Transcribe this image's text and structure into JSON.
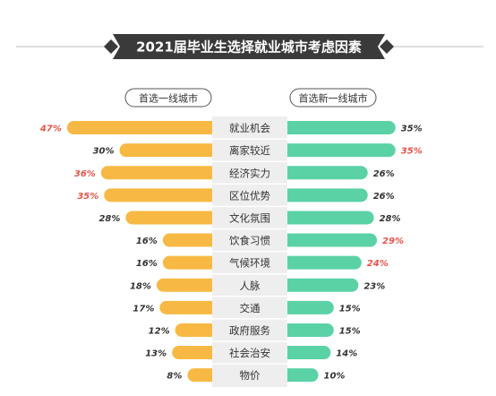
{
  "chart_data": {
    "type": "bar",
    "title": "2021届毕业生选择就业城市考虑因素",
    "left_group": "首选一线城市",
    "right_group": "首选新一线城市",
    "xlim": [
      0,
      50
    ],
    "highlight_color": "#e4554a",
    "normal_value_color": "#333333",
    "left_color": "#f8b944",
    "right_color": "#5ad2a6",
    "categories": [
      "就业机会",
      "离家较近",
      "经济实力",
      "区位优势",
      "文化氛围",
      "饮食习惯",
      "气候环境",
      "人脉",
      "交通",
      "政府服务",
      "社会治安",
      "物价"
    ],
    "series": [
      {
        "name": "首选一线城市",
        "values": [
          47,
          30,
          36,
          35,
          28,
          16,
          16,
          18,
          17,
          12,
          13,
          8
        ],
        "labels": [
          "47%",
          "30%",
          "36%",
          "35%",
          "28%",
          "16%",
          "16%",
          "18%",
          "17%",
          "12%",
          "13%",
          "8%"
        ],
        "highlighted": [
          true,
          false,
          true,
          true,
          false,
          false,
          false,
          false,
          false,
          false,
          false,
          false
        ]
      },
      {
        "name": "首选新一线城市",
        "values": [
          35,
          35,
          26,
          26,
          28,
          29,
          24,
          23,
          15,
          15,
          14,
          10
        ],
        "labels": [
          "35%",
          "35%",
          "26%",
          "26%",
          "28%",
          "29%",
          "24%",
          "23%",
          "15%",
          "15%",
          "14%",
          "10%"
        ],
        "highlighted": [
          false,
          true,
          false,
          false,
          false,
          true,
          true,
          false,
          false,
          false,
          false,
          false
        ]
      }
    ]
  }
}
